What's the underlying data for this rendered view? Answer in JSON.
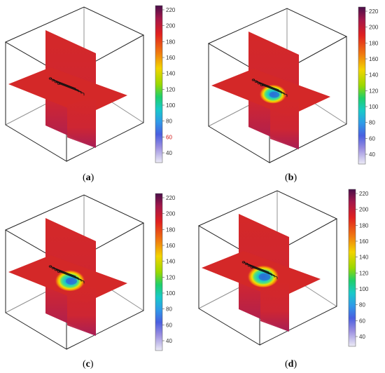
{
  "colors": {
    "field": "#d42828",
    "field_dark": "#b01c48",
    "frame": "#222222",
    "hot_core": "#2a6fd6",
    "cb_top": "#5a1050",
    "cb_bottom": "#e9e7f2"
  },
  "colorbar": {
    "ticks": [
      "220",
      "200",
      "180",
      "160",
      "140",
      "120",
      "100",
      "80",
      "60",
      "40"
    ],
    "highlighted_tick": "60"
  },
  "panels": [
    {
      "id": "a",
      "open": "(",
      "letter": "a",
      "close": ")",
      "has_hot_zone": false,
      "hot_scale": 0
    },
    {
      "id": "b",
      "open": "(",
      "letter": "b",
      "close": ")",
      "has_hot_zone": true,
      "hot_scale": 0.9
    },
    {
      "id": "c",
      "open": "(",
      "letter": "c",
      "close": ")",
      "has_hot_zone": true,
      "hot_scale": 1.0
    },
    {
      "id": "d",
      "open": "(",
      "letter": "d",
      "close": ")",
      "has_hot_zone": true,
      "hot_scale": 1.05
    }
  ]
}
